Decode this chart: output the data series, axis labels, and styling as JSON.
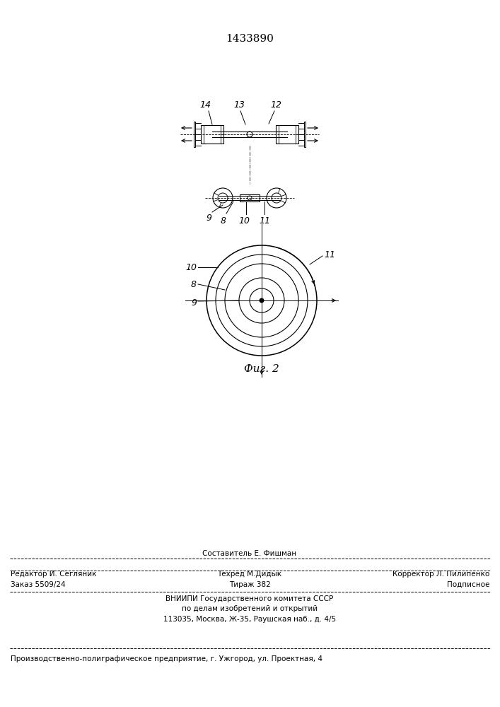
{
  "patent_number": "1433890",
  "fig_label": "Фиг. 2",
  "bg_color": "#ffffff",
  "line_color": "#000000",
  "fig_width": 7.07,
  "fig_height": 10.0,
  "footer": {
    "line1_center_top": "Составитель Е. Фишман",
    "line1_left": "Редактор И. Сегляник",
    "line1_center": "Техред М.Дидык",
    "line1_right": "Корректор Л. Пилипенко",
    "line2_left": "Заказ 5509/24",
    "line2_center": "Тираж 382",
    "line2_right": "Подписное",
    "line3": "ВНИИПИ Государственного комитета СССР",
    "line4": "по делам изобретений и открытий",
    "line5": "113035, Москва, Ж-35, Раушская наб., д. 4/5",
    "line6": "Производственно-полиграфическое предприятие, г. Ужгород, ул. Проектная, 4"
  }
}
